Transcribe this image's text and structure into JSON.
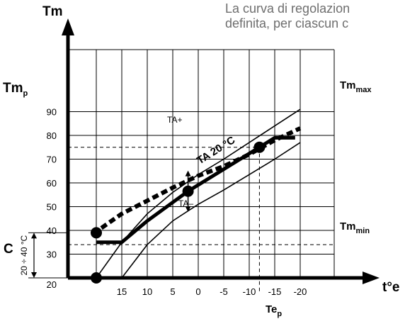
{
  "header_text": {
    "line1": "La curva di regolazion",
    "line2": "definita,  per ciascun c"
  },
  "chart_data": {
    "type": "line",
    "x_axis_label": "t°e",
    "y_axis_label": "Tm",
    "x_ticks": [
      "15",
      "10",
      "5",
      "0",
      "-5",
      "-10",
      "-15",
      "-20"
    ],
    "y_ticks": [
      "90",
      "80",
      "70",
      "60",
      "50",
      "40",
      "30",
      "20"
    ],
    "xlim": [
      20,
      -20
    ],
    "ylim": [
      20,
      95
    ],
    "labels": {
      "tmp": "Tm",
      "tmp_sub": "p",
      "tmmax": "Tm",
      "tmmax_sub": "max",
      "tmmin": "Tm",
      "tmmin_sub": "min",
      "tep": "Te",
      "tep_sub": "p",
      "c": "C",
      "c_range": "20 ÷ 40 °C",
      "ta_plus": "TA+",
      "ta_minus": "TA–",
      "ta_curve": "TA 20 °C"
    },
    "reference_values": {
      "tm_p": 75,
      "te_p": -12,
      "tm_min": 34
    },
    "series": [
      {
        "style": "thick",
        "x": [
          20,
          15,
          10,
          2,
          -12,
          -15,
          -19
        ],
        "y": [
          35,
          35,
          44,
          56.5,
          75,
          79,
          79
        ]
      },
      {
        "style": "dashed",
        "x": [
          19,
          15,
          10,
          5,
          0,
          -5,
          -10,
          -15,
          -20
        ],
        "y": [
          41,
          47,
          52.5,
          58,
          63,
          67,
          72,
          78,
          83
        ]
      },
      {
        "style": "thin",
        "x": [
          20,
          15,
          10,
          5,
          0,
          -5,
          -10,
          -15,
          -20
        ],
        "y": [
          20,
          35,
          47,
          56,
          63.5,
          70,
          77,
          84,
          91
        ]
      },
      {
        "style": "thin",
        "x": [
          15,
          10,
          5,
          0,
          -5,
          -10,
          -15,
          -20
        ],
        "y": [
          20,
          34,
          44,
          51,
          57,
          63.5,
          70,
          77
        ]
      }
    ],
    "points": [
      {
        "x": 20,
        "y": 20
      },
      {
        "x": 20,
        "y": 39
      },
      {
        "x": 2,
        "y": 56.5
      },
      {
        "x": -12,
        "y": 75
      }
    ],
    "grid": true
  }
}
